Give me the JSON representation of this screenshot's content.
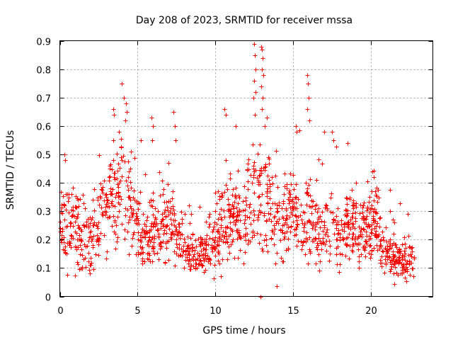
{
  "chart_data": {
    "type": "scatter",
    "title": "Day 208 of 2023, SRMTID for receiver mssa",
    "xlabel": "GPS time / hours",
    "ylabel": "SRMTID / TECUs",
    "xlim": [
      0,
      24
    ],
    "ylim": [
      0,
      0.9
    ],
    "xticks": [
      0,
      5,
      10,
      15,
      20
    ],
    "xtick_labels": [
      "0",
      "5",
      "10",
      "15",
      "20"
    ],
    "yticks": [
      0,
      0.1,
      0.2,
      0.3,
      0.4,
      0.5,
      0.6,
      0.7,
      0.8,
      0.9
    ],
    "ytick_labels": [
      "0",
      "0.1",
      "0.2",
      "0.3",
      "0.4",
      "0.5",
      "0.6",
      "0.7",
      "0.8",
      "0.9"
    ],
    "grid": true,
    "marker": "plus",
    "color": "#ff0000",
    "x_data_range": [
      0,
      22.8
    ],
    "baseline_profile": [
      {
        "x": 0.0,
        "y": 0.26,
        "spread": 0.09
      },
      {
        "x": 1.0,
        "y": 0.24,
        "spread": 0.1
      },
      {
        "x": 1.7,
        "y": 0.19,
        "spread": 0.09
      },
      {
        "x": 2.5,
        "y": 0.26,
        "spread": 0.09
      },
      {
        "x": 3.2,
        "y": 0.33,
        "spread": 0.1
      },
      {
        "x": 4.0,
        "y": 0.38,
        "spread": 0.12
      },
      {
        "x": 4.6,
        "y": 0.3,
        "spread": 0.09
      },
      {
        "x": 5.3,
        "y": 0.2,
        "spread": 0.07
      },
      {
        "x": 6.2,
        "y": 0.25,
        "spread": 0.08
      },
      {
        "x": 7.3,
        "y": 0.24,
        "spread": 0.09
      },
      {
        "x": 8.0,
        "y": 0.16,
        "spread": 0.05
      },
      {
        "x": 9.0,
        "y": 0.15,
        "spread": 0.05
      },
      {
        "x": 9.8,
        "y": 0.18,
        "spread": 0.06
      },
      {
        "x": 10.5,
        "y": 0.26,
        "spread": 0.1
      },
      {
        "x": 11.5,
        "y": 0.28,
        "spread": 0.1
      },
      {
        "x": 12.3,
        "y": 0.34,
        "spread": 0.13
      },
      {
        "x": 13.2,
        "y": 0.32,
        "spread": 0.12
      },
      {
        "x": 14.2,
        "y": 0.26,
        "spread": 0.1
      },
      {
        "x": 15.2,
        "y": 0.3,
        "spread": 0.1
      },
      {
        "x": 16.2,
        "y": 0.28,
        "spread": 0.1
      },
      {
        "x": 17.2,
        "y": 0.22,
        "spread": 0.08
      },
      {
        "x": 18.4,
        "y": 0.25,
        "spread": 0.08
      },
      {
        "x": 19.3,
        "y": 0.22,
        "spread": 0.08
      },
      {
        "x": 20.2,
        "y": 0.26,
        "spread": 0.08
      },
      {
        "x": 21.0,
        "y": 0.15,
        "spread": 0.05
      },
      {
        "x": 22.0,
        "y": 0.13,
        "spread": 0.05
      },
      {
        "x": 22.8,
        "y": 0.12,
        "spread": 0.04
      }
    ],
    "peaks": [
      {
        "x": 0.3,
        "y": 0.5
      },
      {
        "x": 0.35,
        "y": 0.48
      },
      {
        "x": 3.45,
        "y": 0.66
      },
      {
        "x": 3.5,
        "y": 0.64
      },
      {
        "x": 3.8,
        "y": 0.58
      },
      {
        "x": 4.0,
        "y": 0.75
      },
      {
        "x": 4.1,
        "y": 0.7
      },
      {
        "x": 4.25,
        "y": 0.68
      },
      {
        "x": 4.3,
        "y": 0.65
      },
      {
        "x": 4.2,
        "y": 0.62
      },
      {
        "x": 5.2,
        "y": 0.55
      },
      {
        "x": 5.9,
        "y": 0.63
      },
      {
        "x": 6.0,
        "y": 0.6
      },
      {
        "x": 5.95,
        "y": 0.55
      },
      {
        "x": 7.3,
        "y": 0.65
      },
      {
        "x": 7.4,
        "y": 0.6
      },
      {
        "x": 7.45,
        "y": 0.55
      },
      {
        "x": 10.6,
        "y": 0.66
      },
      {
        "x": 10.7,
        "y": 0.64
      },
      {
        "x": 11.3,
        "y": 0.6
      },
      {
        "x": 12.5,
        "y": 0.89
      },
      {
        "x": 12.55,
        "y": 0.85
      },
      {
        "x": 12.6,
        "y": 0.8
      },
      {
        "x": 12.5,
        "y": 0.76
      },
      {
        "x": 12.6,
        "y": 0.72
      },
      {
        "x": 12.45,
        "y": 0.7
      },
      {
        "x": 12.55,
        "y": 0.64
      },
      {
        "x": 12.95,
        "y": 0.88
      },
      {
        "x": 13.0,
        "y": 0.87
      },
      {
        "x": 13.05,
        "y": 0.84
      },
      {
        "x": 13.0,
        "y": 0.8
      },
      {
        "x": 13.1,
        "y": 0.78
      },
      {
        "x": 12.95,
        "y": 0.74
      },
      {
        "x": 13.05,
        "y": 0.7
      },
      {
        "x": 13.0,
        "y": 0.66
      },
      {
        "x": 13.3,
        "y": 0.63
      },
      {
        "x": 13.2,
        "y": 0.6
      },
      {
        "x": 15.2,
        "y": 0.6
      },
      {
        "x": 15.25,
        "y": 0.58
      },
      {
        "x": 15.9,
        "y": 0.78
      },
      {
        "x": 15.95,
        "y": 0.75
      },
      {
        "x": 16.0,
        "y": 0.7
      },
      {
        "x": 15.9,
        "y": 0.66
      },
      {
        "x": 16.05,
        "y": 0.62
      },
      {
        "x": 17.0,
        "y": 0.58
      },
      {
        "x": 17.5,
        "y": 0.58
      },
      {
        "x": 17.6,
        "y": 0.55
      },
      {
        "x": 18.5,
        "y": 0.54
      },
      {
        "x": 20.1,
        "y": 0.44
      },
      {
        "x": 20.2,
        "y": 0.42
      },
      {
        "x": 12.9,
        "y": 0.0
      }
    ]
  }
}
